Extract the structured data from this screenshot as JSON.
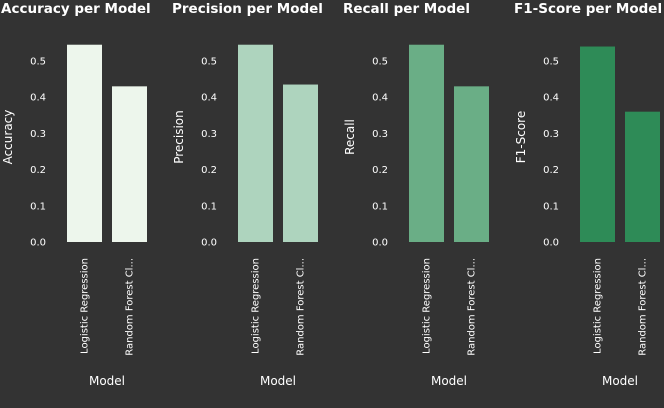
{
  "chart_data": [
    {
      "type": "bar",
      "title": "Accuracy per Model",
      "xlabel": "Model",
      "ylabel": "Accuracy",
      "categories": [
        "Logistic Regression",
        "Random Forest Cl..."
      ],
      "values": [
        0.545,
        0.43
      ],
      "ylim": [
        0,
        0.58
      ],
      "yticks": [
        "0.0",
        "0.1",
        "0.2",
        "0.3",
        "0.4",
        "0.5"
      ],
      "color": "#edf6ec",
      "grid": false
    },
    {
      "type": "bar",
      "title": "Precision per Model",
      "xlabel": "Model",
      "ylabel": "Precision",
      "categories": [
        "Logistic Regression",
        "Random Forest Cl..."
      ],
      "values": [
        0.545,
        0.435
      ],
      "ylim": [
        0,
        0.58
      ],
      "yticks": [
        "0.0",
        "0.1",
        "0.2",
        "0.3",
        "0.4",
        "0.5"
      ],
      "color": "#aed4be",
      "grid": false
    },
    {
      "type": "bar",
      "title": "Recall per Model",
      "xlabel": "Model",
      "ylabel": "Recall",
      "categories": [
        "Logistic Regression",
        "Random Forest Cl..."
      ],
      "values": [
        0.545,
        0.43
      ],
      "ylim": [
        0,
        0.58
      ],
      "yticks": [
        "0.0",
        "0.1",
        "0.2",
        "0.3",
        "0.4",
        "0.5"
      ],
      "color": "#6aae86",
      "grid": false
    },
    {
      "type": "bar",
      "title": "F1-Score per Model",
      "xlabel": "Model",
      "ylabel": "F1-Score",
      "categories": [
        "Logistic Regression",
        "Random Forest Cl..."
      ],
      "values": [
        0.54,
        0.36
      ],
      "ylim": [
        0,
        0.58
      ],
      "yticks": [
        "0.0",
        "0.1",
        "0.2",
        "0.3",
        "0.4",
        "0.5"
      ],
      "color": "#2e8b57",
      "grid": false
    }
  ]
}
